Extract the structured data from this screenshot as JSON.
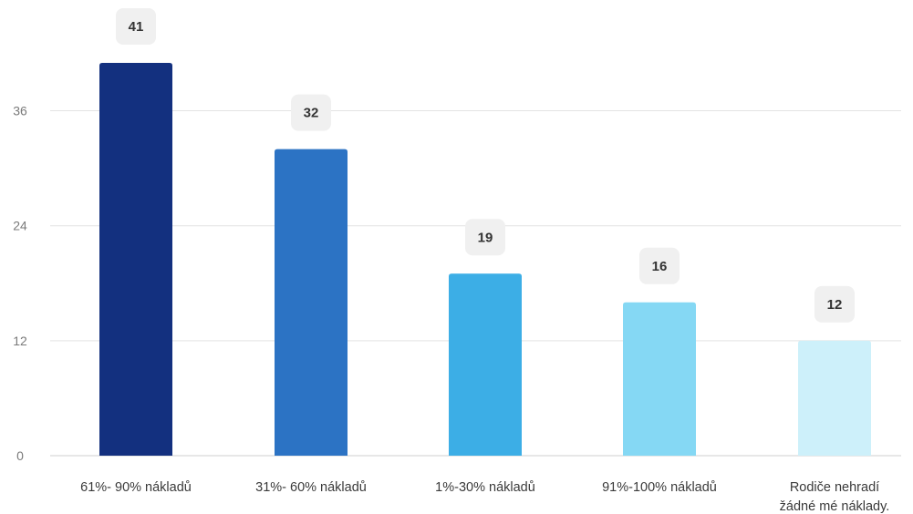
{
  "chart_data": {
    "type": "bar",
    "categories": [
      [
        "61%- 90% nákladů"
      ],
      [
        "31%- 60% nákladů"
      ],
      [
        "1%-30% nákladů"
      ],
      [
        "91%-100% nákladů"
      ],
      [
        "Rodiče nehradí",
        "žádné mé náklady."
      ]
    ],
    "values": [
      41,
      32,
      19,
      16,
      12
    ],
    "value_labels": [
      "41",
      "32",
      "19",
      "16",
      "12"
    ],
    "colors": [
      "#13307f",
      "#2c73c4",
      "#3caee6",
      "#85d8f4",
      "#cdf0fa"
    ],
    "yticks": [
      0,
      12,
      24,
      36
    ],
    "ylim": [
      0,
      41
    ],
    "grid": true,
    "title": "",
    "xlabel": "",
    "ylabel": ""
  }
}
